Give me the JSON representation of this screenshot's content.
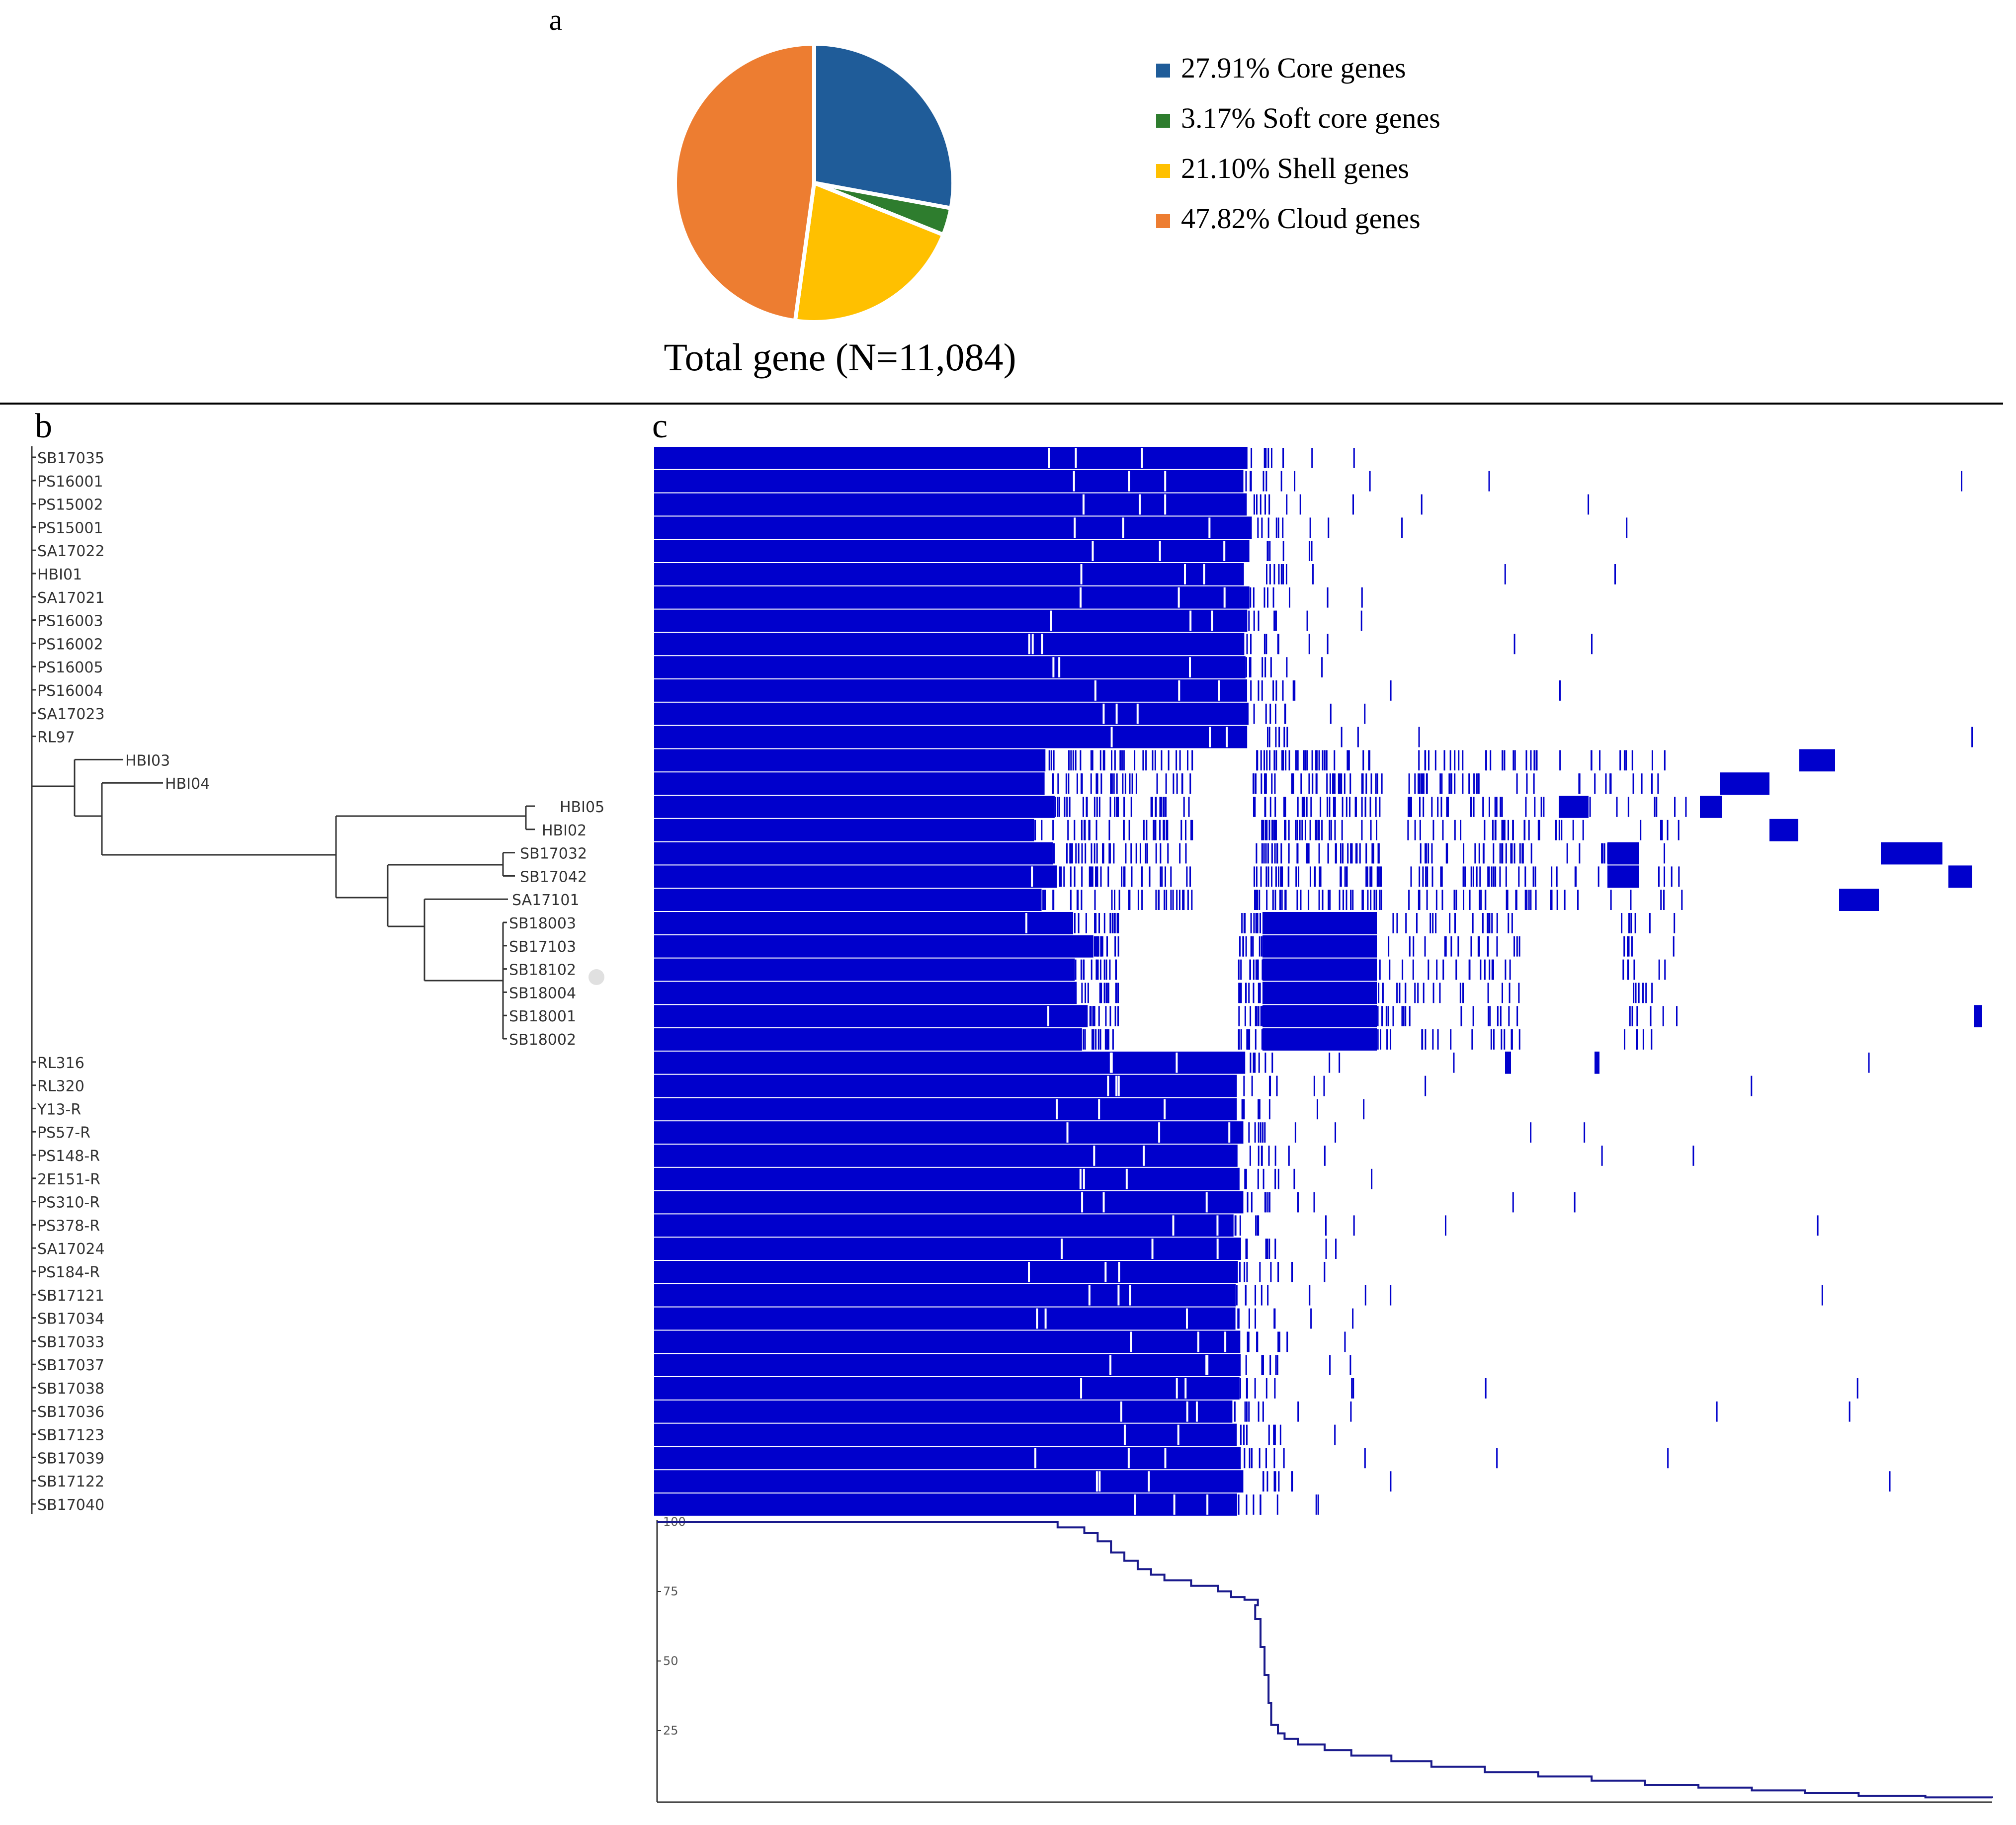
{
  "panels": {
    "a": "a",
    "b": "b",
    "c": "c"
  },
  "chart_data": [
    {
      "type": "pie",
      "title": "Total gene (N=11,084)",
      "slices": [
        {
          "label": "27.91% Core genes",
          "value": 27.91,
          "color": "#1f5c99"
        },
        {
          "label": "3.17% Soft core genes",
          "value": 3.17,
          "color": "#2e7d2e"
        },
        {
          "label": "21.10% Shell genes",
          "value": 21.1,
          "color": "#ffc000"
        },
        {
          "label": "47.82% Cloud genes",
          "value": 47.82,
          "color": "#ed7d31"
        }
      ]
    },
    {
      "type": "tree",
      "leaves": [
        "SB17035",
        "PS16001",
        "PS15002",
        "PS15001",
        "SA17022",
        "HBI01",
        "SA17021",
        "PS16003",
        "PS16002",
        "PS16005",
        "PS16004",
        "SA17023",
        "RL97",
        "HBI03",
        "HBI04",
        "HBI05",
        "HBI02",
        "SB17032",
        "SB17042",
        "SA17101",
        "SB18003",
        "SB17103",
        "SB18102",
        "SB18004",
        "SB18001",
        "SB18002",
        "RL316",
        "RL320",
        "Y13-R",
        "PS57-R",
        "PS148-R",
        "2E151-R",
        "PS310-R",
        "PS378-R",
        "SA17024",
        "PS184-R",
        "SB17121",
        "SB17034",
        "SB17033",
        "SB17037",
        "SB17038",
        "SB17036",
        "SB17123",
        "SB17039",
        "SB17122",
        "SB17040"
      ]
    },
    {
      "type": "heatmap",
      "description_rows": 46,
      "color": "#0000cc"
    },
    {
      "type": "line",
      "yticks": [
        "100",
        "75",
        "50",
        "25"
      ],
      "ylim": [
        0,
        100
      ],
      "x": [
        0,
        0.28,
        0.3,
        0.32,
        0.33,
        0.34,
        0.35,
        0.36,
        0.37,
        0.38,
        0.4,
        0.42,
        0.43,
        0.44,
        0.45,
        0.448,
        0.452,
        0.455,
        0.458,
        0.46,
        0.465,
        0.47,
        0.48,
        0.5,
        0.52,
        0.55,
        0.58,
        0.62,
        0.66,
        0.7,
        0.74,
        0.78,
        0.82,
        0.86,
        0.9,
        0.95,
        1.0
      ],
      "y": [
        100,
        100,
        98,
        96,
        93,
        89,
        86,
        83,
        81,
        79,
        77,
        75,
        73,
        72,
        70,
        65,
        55,
        45,
        35,
        27,
        24,
        22,
        20,
        18,
        16,
        14,
        12,
        10,
        8.5,
        7,
        5.5,
        4.5,
        3.5,
        2.5,
        1.5,
        1,
        0.7
      ],
      "color": "#1a1a8c"
    }
  ]
}
